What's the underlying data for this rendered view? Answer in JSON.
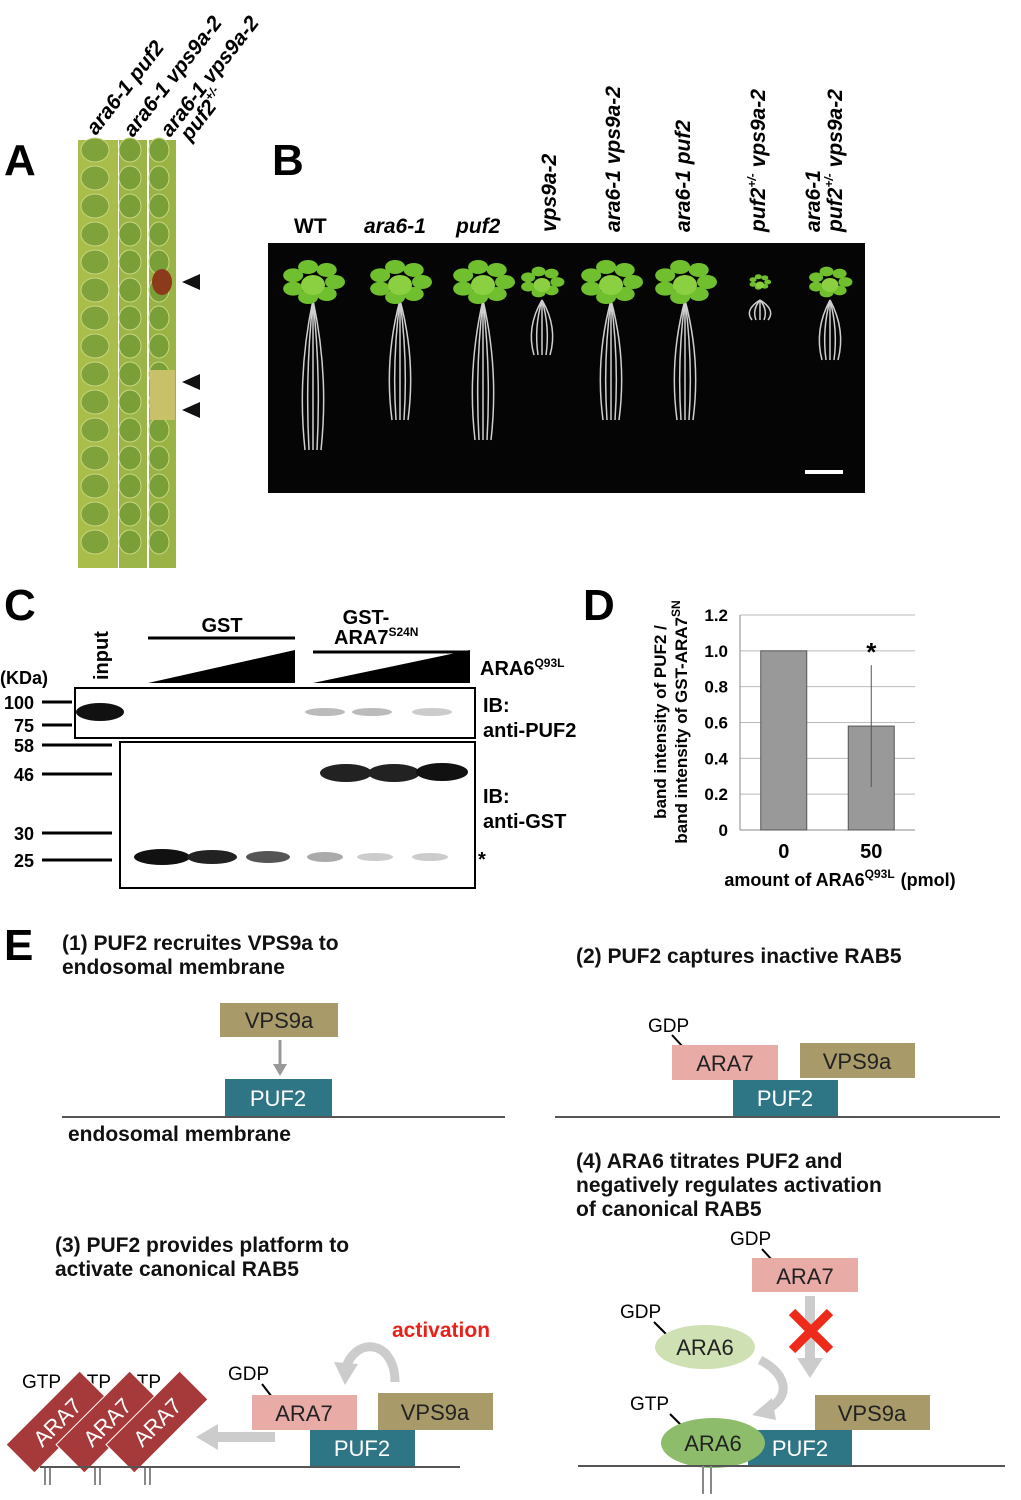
{
  "panel_a": {
    "label": "A",
    "genotype_lines": [
      "ara6-1 puf2",
      "ara6-1 vps9a-2",
      "ara6-1 vps9a-2"
    ],
    "last_line": {
      "text": "puf2",
      "sup": "+/-"
    }
  },
  "panel_b": {
    "label": "B",
    "genotypes": [
      {
        "text": "WT"
      },
      {
        "text": "ara6-1"
      },
      {
        "text": "puf2"
      },
      {
        "text": "vps9a-2"
      },
      {
        "text": "ara6-1 vps9a-2"
      },
      {
        "text": "ara6-1 puf2"
      },
      {
        "text": "puf2",
        "sup": "+/-",
        "after": "vps9a-2"
      },
      {
        "text": "ara6-1"
      },
      {
        "text": "puf2",
        "sup": "+/-",
        "after": "vps9a-2"
      }
    ]
  },
  "panel_c": {
    "label": "C",
    "input": "input",
    "gst": "GST",
    "gst_ara7": {
      "line1": "GST-",
      "text": "ARA7",
      "sup": "S24N"
    },
    "ara6": {
      "text": "ARA6",
      "sup": "Q93L"
    },
    "unit": "(KDa)",
    "markers": [
      100,
      75,
      58,
      46,
      30,
      25
    ],
    "blots": [
      {
        "ib": "IB:",
        "antibody": "anti-PUF2"
      },
      {
        "ib": "IB:",
        "antibody": "anti-GST"
      }
    ],
    "note": "*"
  },
  "chart_data": {
    "type": "bar",
    "label": "D",
    "y_label_lines": [
      {
        "text": "band intensity of PUF2 /"
      },
      {
        "text": "band intensity of GST-ARA7",
        "sup": "SN"
      }
    ],
    "x_label": {
      "text": "amount of ARA6",
      "sup": "Q93L",
      "after": "(pmol)"
    },
    "categories": [
      "0",
      "50"
    ],
    "values": [
      1.0,
      0.58
    ],
    "errors": [
      null,
      0.34
    ],
    "color": "#999999",
    "ylim": [
      0,
      1.2
    ],
    "yticks": [
      0,
      0.2,
      0.4,
      0.6,
      0.8,
      {
        "value": 1,
        "label": "1.0"
      },
      1.2
    ],
    "grid": true,
    "annotations": [
      "*"
    ]
  },
  "panel_e": {
    "label": "E",
    "step1": {
      "title": [
        "(1) PUF2 recruites VPS9a to",
        "endosomal membrane"
      ],
      "vps9a": "VPS9a",
      "puf2": "PUF2",
      "membrane": "endosomal membrane"
    },
    "step2": {
      "title": [
        "(2) PUF2 captures inactive RAB5"
      ],
      "gdp": "GDP",
      "ara7": "ARA7",
      "vps9a": "VPS9a",
      "puf2": "PUF2"
    },
    "step3": {
      "title": [
        "(3) PUF2 provides platform to",
        "activate canonical RAB5"
      ],
      "gtp": [
        "GTP",
        "GTP",
        "GTP"
      ],
      "ara7_active": [
        "ARA7",
        "ARA7",
        "ARA7"
      ],
      "gdp": "GDP",
      "ara7": "ARA7",
      "vps9a": "VPS9a",
      "puf2": "PUF2",
      "activation": "activation"
    },
    "step4": {
      "title": [
        "(4) ARA6 titrates PUF2 and",
        "negatively regulates activation",
        "of canonical RAB5"
      ],
      "gdp_ara7": "GDP",
      "ara7": "ARA7",
      "gdp_ara6": "GDP",
      "ara6_gdp": "ARA6",
      "gtp": "GTP",
      "ara6_gtp": "ARA6",
      "vps9a": "VPS9a",
      "puf2": "PUF2"
    }
  }
}
